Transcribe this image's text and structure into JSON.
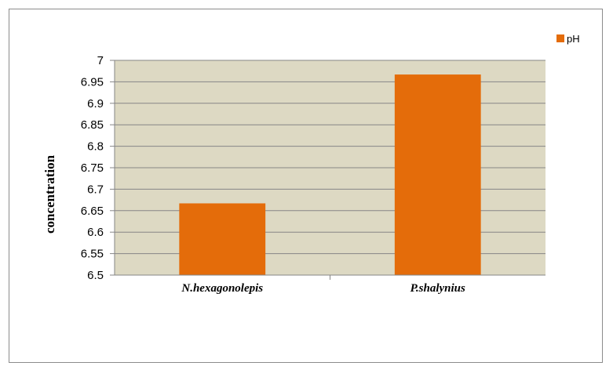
{
  "chart_data": {
    "type": "bar",
    "categories": [
      "N.hexagonolepis",
      "P.shalynius"
    ],
    "series": [
      {
        "name": "pH",
        "values": [
          6.667,
          6.967
        ],
        "color": "#e46c0a"
      }
    ],
    "title": "",
    "xlabel": "",
    "ylabel": "concentration",
    "ylim": [
      6.5,
      7
    ],
    "yticks": [
      "6.5",
      "6.55",
      "6.6",
      "6.65",
      "6.7",
      "6.75",
      "6.8",
      "6.85",
      "6.9",
      "6.95",
      "7"
    ],
    "grid": true,
    "legend_position": "top-right",
    "plot_background": "#ddd9c3"
  }
}
